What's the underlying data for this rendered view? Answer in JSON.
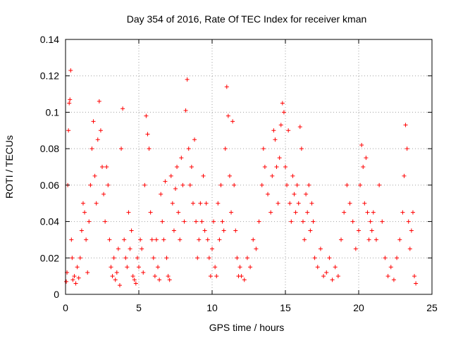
{
  "chart_data": {
    "type": "scatter",
    "title": "Day 354 of 2016, Rate Of TEC Index for receiver kman",
    "xlabel": "GPS time / hours",
    "ylabel": "ROTI / TECUs",
    "xlim": [
      0,
      25
    ],
    "ylim": [
      0,
      0.14
    ],
    "grid": true,
    "marker": "+",
    "color": "#ff0000",
    "x_ticks": [
      "0",
      "5",
      "10",
      "15",
      "20",
      "25"
    ],
    "y_ticks": [
      "0",
      "0.02",
      "0.04",
      "0.06",
      "0.08",
      "0.1",
      "0.12",
      "0.14"
    ],
    "series": [
      {
        "name": "ROTI",
        "points": [
          [
            0.05,
            0.007
          ],
          [
            0.1,
            0.012
          ],
          [
            0.15,
            0.06
          ],
          [
            0.2,
            0.09
          ],
          [
            0.25,
            0.105
          ],
          [
            0.3,
            0.107
          ],
          [
            0.35,
            0.123
          ],
          [
            0.4,
            0.03
          ],
          [
            0.45,
            0.02
          ],
          [
            0.5,
            0.008
          ],
          [
            0.6,
            0.01
          ],
          [
            0.7,
            0.006
          ],
          [
            0.8,
            0.015
          ],
          [
            0.9,
            0.009
          ],
          [
            1.0,
            0.02
          ],
          [
            1.1,
            0.035
          ],
          [
            1.2,
            0.05
          ],
          [
            1.3,
            0.045
          ],
          [
            1.4,
            0.03
          ],
          [
            1.5,
            0.012
          ],
          [
            1.6,
            0.04
          ],
          [
            1.7,
            0.06
          ],
          [
            1.8,
            0.08
          ],
          [
            1.9,
            0.095
          ],
          [
            2.0,
            0.065
          ],
          [
            2.1,
            0.05
          ],
          [
            2.2,
            0.085
          ],
          [
            2.3,
            0.106
          ],
          [
            2.4,
            0.09
          ],
          [
            2.5,
            0.07
          ],
          [
            2.6,
            0.055
          ],
          [
            2.7,
            0.04
          ],
          [
            2.8,
            0.07
          ],
          [
            2.9,
            0.06
          ],
          [
            3.0,
            0.03
          ],
          [
            3.1,
            0.015
          ],
          [
            3.2,
            0.01
          ],
          [
            3.3,
            0.02
          ],
          [
            3.4,
            0.008
          ],
          [
            3.5,
            0.012
          ],
          [
            3.6,
            0.025
          ],
          [
            3.7,
            0.005
          ],
          [
            3.8,
            0.08
          ],
          [
            3.9,
            0.102
          ],
          [
            4.0,
            0.03
          ],
          [
            4.1,
            0.02
          ],
          [
            4.2,
            0.015
          ],
          [
            4.3,
            0.045
          ],
          [
            4.4,
            0.025
          ],
          [
            4.5,
            0.035
          ],
          [
            4.6,
            0.01
          ],
          [
            4.7,
            0.008
          ],
          [
            4.8,
            0.006
          ],
          [
            4.9,
            0.02
          ],
          [
            5.0,
            0.015
          ],
          [
            5.1,
            0.03
          ],
          [
            5.2,
            0.025
          ],
          [
            5.3,
            0.012
          ],
          [
            5.4,
            0.06
          ],
          [
            5.5,
            0.098
          ],
          [
            5.6,
            0.088
          ],
          [
            5.7,
            0.08
          ],
          [
            5.8,
            0.045
          ],
          [
            5.9,
            0.03
          ],
          [
            6.0,
            0.02
          ],
          [
            6.1,
            0.01
          ],
          [
            6.2,
            0.03
          ],
          [
            6.3,
            0.015
          ],
          [
            6.4,
            0.008
          ],
          [
            6.5,
            0.055
          ],
          [
            6.6,
            0.04
          ],
          [
            6.7,
            0.03
          ],
          [
            6.8,
            0.062
          ],
          [
            6.9,
            0.02
          ],
          [
            7.0,
            0.01
          ],
          [
            7.1,
            0.008
          ],
          [
            7.2,
            0.065
          ],
          [
            7.3,
            0.05
          ],
          [
            7.4,
            0.035
          ],
          [
            7.5,
            0.058
          ],
          [
            7.6,
            0.07
          ],
          [
            7.7,
            0.045
          ],
          [
            7.8,
            0.03
          ],
          [
            7.9,
            0.075
          ],
          [
            8.0,
            0.06
          ],
          [
            8.1,
            0.04
          ],
          [
            8.2,
            0.101
          ],
          [
            8.3,
            0.118
          ],
          [
            8.4,
            0.08
          ],
          [
            8.5,
            0.06
          ],
          [
            8.6,
            0.07
          ],
          [
            8.7,
            0.05
          ],
          [
            8.8,
            0.085
          ],
          [
            8.9,
            0.04
          ],
          [
            9.0,
            0.02
          ],
          [
            9.1,
            0.03
          ],
          [
            9.2,
            0.05
          ],
          [
            9.3,
            0.04
          ],
          [
            9.4,
            0.065
          ],
          [
            9.5,
            0.035
          ],
          [
            9.6,
            0.05
          ],
          [
            9.7,
            0.03
          ],
          [
            9.8,
            0.02
          ],
          [
            9.9,
            0.01
          ],
          [
            10.0,
            0.025
          ],
          [
            10.1,
            0.04
          ],
          [
            10.2,
            0.015
          ],
          [
            10.3,
            0.01
          ],
          [
            10.4,
            0.05
          ],
          [
            10.5,
            0.03
          ],
          [
            10.6,
            0.06
          ],
          [
            10.7,
            0.04
          ],
          [
            10.8,
            0.035
          ],
          [
            10.9,
            0.08
          ],
          [
            11.0,
            0.114
          ],
          [
            11.1,
            0.098
          ],
          [
            11.2,
            0.065
          ],
          [
            11.3,
            0.045
          ],
          [
            11.4,
            0.095
          ],
          [
            11.5,
            0.06
          ],
          [
            11.6,
            0.035
          ],
          [
            11.7,
            0.02
          ],
          [
            11.8,
            0.01
          ],
          [
            11.9,
            0.015
          ],
          [
            12.0,
            0.01
          ],
          [
            12.2,
            0.008
          ],
          [
            12.4,
            0.02
          ],
          [
            12.6,
            0.015
          ],
          [
            12.8,
            0.03
          ],
          [
            13.0,
            0.025
          ],
          [
            13.2,
            0.04
          ],
          [
            13.4,
            0.06
          ],
          [
            13.5,
            0.08
          ],
          [
            13.6,
            0.07
          ],
          [
            13.8,
            0.055
          ],
          [
            14.0,
            0.045
          ],
          [
            14.1,
            0.065
          ],
          [
            14.2,
            0.09
          ],
          [
            14.3,
            0.085
          ],
          [
            14.4,
            0.07
          ],
          [
            14.5,
            0.05
          ],
          [
            14.6,
            0.075
          ],
          [
            14.7,
            0.093
          ],
          [
            14.8,
            0.105
          ],
          [
            14.9,
            0.1
          ],
          [
            15.0,
            0.07
          ],
          [
            15.1,
            0.06
          ],
          [
            15.2,
            0.09
          ],
          [
            15.3,
            0.05
          ],
          [
            15.4,
            0.04
          ],
          [
            15.5,
            0.065
          ],
          [
            15.6,
            0.055
          ],
          [
            15.7,
            0.045
          ],
          [
            15.8,
            0.06
          ],
          [
            15.9,
            0.05
          ],
          [
            16.0,
            0.092
          ],
          [
            16.1,
            0.08
          ],
          [
            16.2,
            0.04
          ],
          [
            16.3,
            0.03
          ],
          [
            16.4,
            0.055
          ],
          [
            16.5,
            0.045
          ],
          [
            16.6,
            0.06
          ],
          [
            16.7,
            0.035
          ],
          [
            16.8,
            0.05
          ],
          [
            16.9,
            0.04
          ],
          [
            17.0,
            0.02
          ],
          [
            17.2,
            0.015
          ],
          [
            17.4,
            0.025
          ],
          [
            17.6,
            0.01
          ],
          [
            17.8,
            0.012
          ],
          [
            18.0,
            0.02
          ],
          [
            18.2,
            0.008
          ],
          [
            18.4,
            0.015
          ],
          [
            18.6,
            0.01
          ],
          [
            18.8,
            0.03
          ],
          [
            19.0,
            0.045
          ],
          [
            19.2,
            0.06
          ],
          [
            19.4,
            0.05
          ],
          [
            19.6,
            0.04
          ],
          [
            19.8,
            0.025
          ],
          [
            20.0,
            0.035
          ],
          [
            20.1,
            0.06
          ],
          [
            20.2,
            0.082
          ],
          [
            20.3,
            0.07
          ],
          [
            20.4,
            0.05
          ],
          [
            20.5,
            0.075
          ],
          [
            20.6,
            0.045
          ],
          [
            20.7,
            0.03
          ],
          [
            20.8,
            0.04
          ],
          [
            20.9,
            0.035
          ],
          [
            21.0,
            0.045
          ],
          [
            21.2,
            0.03
          ],
          [
            21.4,
            0.06
          ],
          [
            21.6,
            0.04
          ],
          [
            21.8,
            0.02
          ],
          [
            22.0,
            0.01
          ],
          [
            22.2,
            0.015
          ],
          [
            22.4,
            0.008
          ],
          [
            22.6,
            0.02
          ],
          [
            22.8,
            0.03
          ],
          [
            23.0,
            0.045
          ],
          [
            23.1,
            0.065
          ],
          [
            23.2,
            0.093
          ],
          [
            23.3,
            0.08
          ],
          [
            23.4,
            0.04
          ],
          [
            23.5,
            0.025
          ],
          [
            23.6,
            0.035
          ],
          [
            23.7,
            0.045
          ],
          [
            23.8,
            0.01
          ],
          [
            23.9,
            0.006
          ]
        ]
      }
    ]
  }
}
